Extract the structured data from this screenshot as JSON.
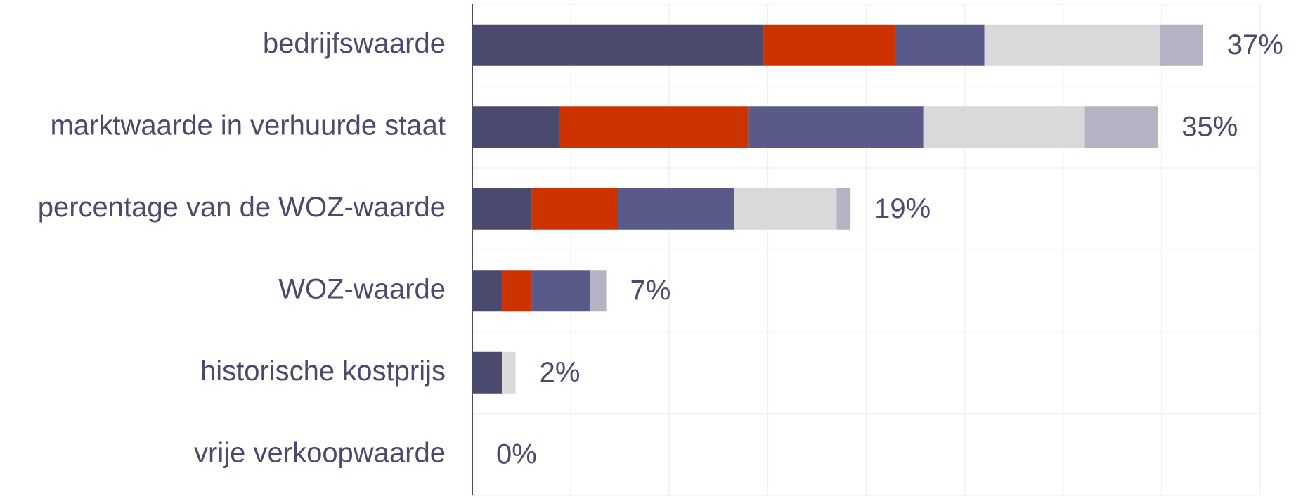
{
  "chart_data": {
    "type": "stacked-bar-horizontal",
    "categories": [
      "bedrijfswaarde",
      "marktwaarde in verhuurde staat",
      "percentage van de WOZ-waarde",
      "WOZ-waarde",
      "historische kostprijs",
      "vrije verkoopwaarde"
    ],
    "series": [
      {
        "color": "#4a4a6e",
        "values": [
          14.8,
          4.4,
          3.0,
          1.5,
          1.5,
          0
        ]
      },
      {
        "color": "#cc3300",
        "values": [
          6.7,
          9.6,
          4.4,
          1.5,
          0,
          0
        ]
      },
      {
        "color": "#5a5a8a",
        "values": [
          4.5,
          8.9,
          5.9,
          3.0,
          0,
          0
        ]
      },
      {
        "color": "#d9d9d9",
        "values": [
          8.9,
          8.2,
          5.2,
          0,
          0.7,
          0
        ]
      },
      {
        "color": "#b3b3c4",
        "values": [
          2.2,
          3.7,
          0.7,
          0.8,
          0,
          0
        ]
      }
    ],
    "totals": [
      37,
      35,
      19,
      7,
      2,
      0
    ],
    "total_labels": [
      "37%",
      "35%",
      "19%",
      "7%",
      "2%",
      "0%"
    ],
    "xlim": [
      0,
      40
    ],
    "xticks": [
      0,
      5,
      10,
      15,
      20,
      25,
      30,
      35,
      40
    ],
    "grid": true
  }
}
